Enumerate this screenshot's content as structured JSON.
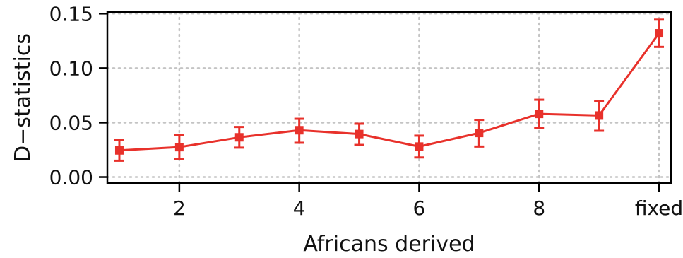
{
  "chart_data": {
    "type": "line",
    "title": "",
    "xlabel": "Africans derived",
    "ylabel": "D−statistics",
    "xlim": [
      0.8,
      10.2
    ],
    "ylim": [
      -0.0055,
      0.1515
    ],
    "x_ticks": [
      2,
      4,
      6,
      8,
      10
    ],
    "x_tick_labels": [
      "2",
      "4",
      "6",
      "8",
      "fixed"
    ],
    "y_ticks": [
      0.0,
      0.05,
      0.1,
      0.15
    ],
    "y_tick_labels": [
      "0.00",
      "0.05",
      "0.10",
      "0.15"
    ],
    "grid": true,
    "grid_style": "dotted",
    "legend": "none",
    "series": [
      {
        "color": "#e8312b",
        "marker": "square",
        "x": [
          1,
          2,
          3,
          4,
          5,
          6,
          7,
          8,
          9,
          10
        ],
        "values": [
          0.0245,
          0.0275,
          0.0365,
          0.043,
          0.0395,
          0.028,
          0.0405,
          0.058,
          0.0565,
          0.132
        ],
        "error_low": [
          0.015,
          0.0165,
          0.027,
          0.0315,
          0.0295,
          0.018,
          0.028,
          0.045,
          0.0425,
          0.1195
        ],
        "error_high": [
          0.034,
          0.0385,
          0.046,
          0.0535,
          0.049,
          0.038,
          0.0525,
          0.071,
          0.07,
          0.1445
        ]
      }
    ]
  }
}
